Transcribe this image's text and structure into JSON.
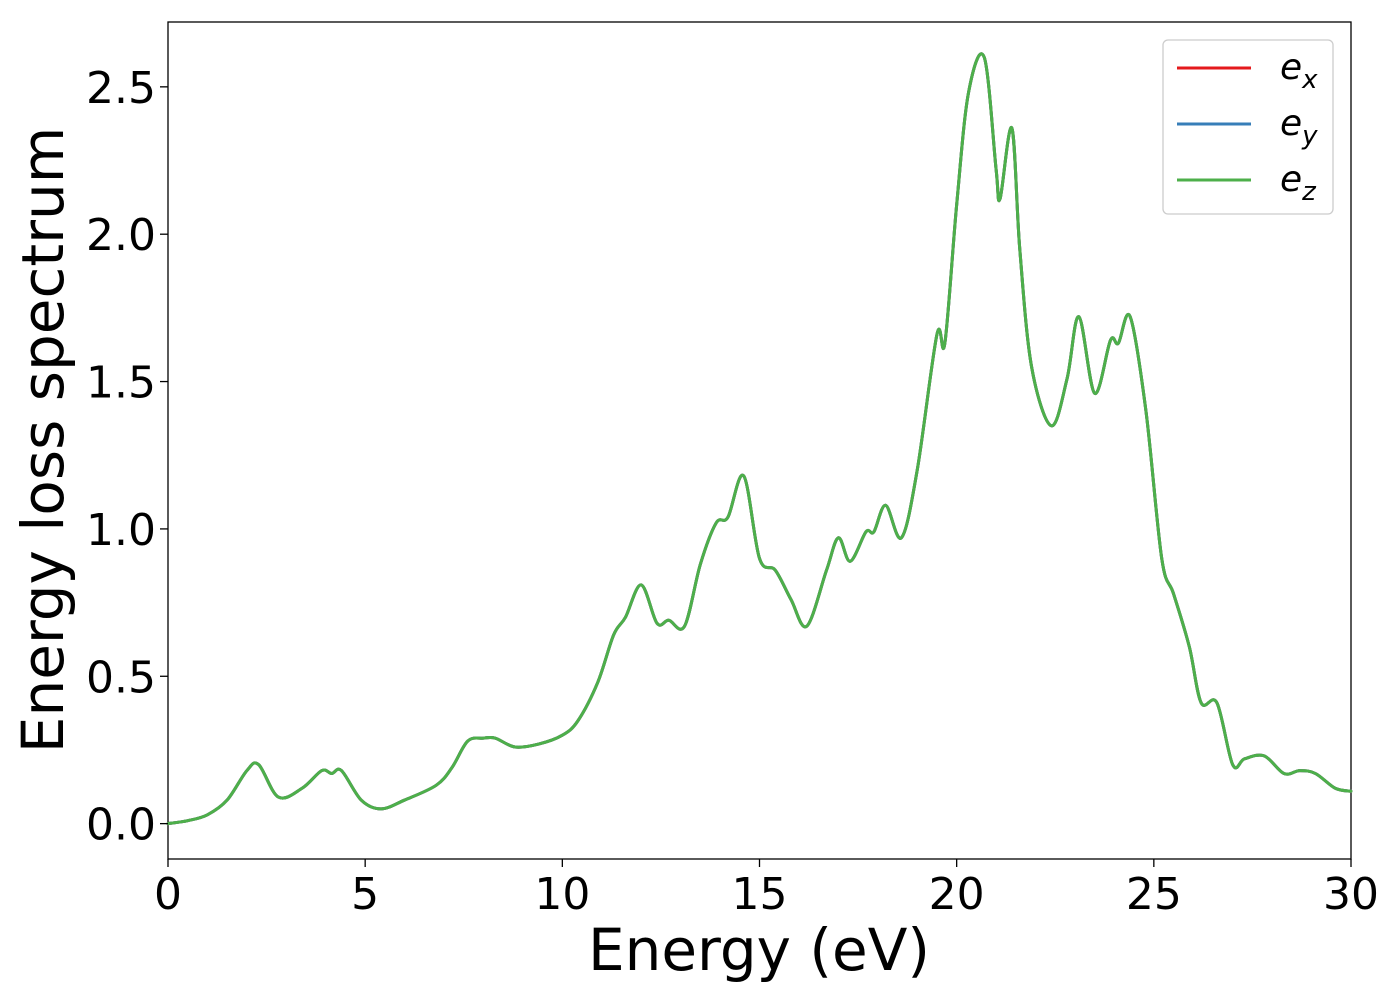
{
  "chart_data": {
    "type": "line",
    "title": "",
    "xlabel": "Energy (eV)",
    "ylabel": "Energy loss spectrum",
    "xlim": [
      0,
      30
    ],
    "ylim": [
      -0.12,
      2.72
    ],
    "xticks": [
      0,
      5,
      10,
      15,
      20,
      25,
      30
    ],
    "xtick_labels": [
      "0",
      "5",
      "10",
      "15",
      "20",
      "25",
      "30"
    ],
    "yticks": [
      0.0,
      0.5,
      1.0,
      1.5,
      2.0,
      2.5
    ],
    "ytick_labels": [
      "0.0",
      "0.5",
      "1.0",
      "1.5",
      "2.0",
      "2.5"
    ],
    "grid": false,
    "legend": {
      "position": "top-right",
      "entries": [
        {
          "base": "e",
          "sub": "x",
          "color": "#e41a1c"
        },
        {
          "base": "e",
          "sub": "y",
          "color": "#377eb8"
        },
        {
          "base": "e",
          "sub": "z",
          "color": "#4daf4a"
        }
      ]
    },
    "x": [
      0,
      0.5,
      1.0,
      1.5,
      2.0,
      2.3,
      2.8,
      3.4,
      3.9,
      4.15,
      4.4,
      4.9,
      5.4,
      6.0,
      6.8,
      7.2,
      7.6,
      8.0,
      8.3,
      8.8,
      9.4,
      10.0,
      10.4,
      10.9,
      11.3,
      11.6,
      12.0,
      12.4,
      12.7,
      13.1,
      13.5,
      13.9,
      14.2,
      14.6,
      15.0,
      15.4,
      15.8,
      16.2,
      16.7,
      17.0,
      17.3,
      17.7,
      17.9,
      18.2,
      18.6,
      19.0,
      19.5,
      19.7,
      20.0,
      20.3,
      20.7,
      21.0,
      21.1,
      21.4,
      21.6,
      21.9,
      22.4,
      22.8,
      23.1,
      23.5,
      23.9,
      24.1,
      24.4,
      24.8,
      25.2,
      25.5,
      25.9,
      26.2,
      26.6,
      27.0,
      27.3,
      27.8,
      28.3,
      28.7,
      29.1,
      29.6,
      30.0
    ],
    "series": [
      {
        "name": "e_x",
        "color": "#e41a1c",
        "values": [
          0.0,
          0.01,
          0.03,
          0.08,
          0.18,
          0.2,
          0.09,
          0.12,
          0.18,
          0.17,
          0.18,
          0.08,
          0.05,
          0.08,
          0.13,
          0.19,
          0.28,
          0.29,
          0.29,
          0.26,
          0.27,
          0.3,
          0.35,
          0.48,
          0.64,
          0.7,
          0.81,
          0.68,
          0.69,
          0.67,
          0.88,
          1.02,
          1.04,
          1.18,
          0.9,
          0.86,
          0.76,
          0.67,
          0.86,
          0.97,
          0.89,
          0.99,
          0.99,
          1.08,
          0.97,
          1.2,
          1.66,
          1.63,
          2.1,
          2.48,
          2.6,
          2.22,
          2.12,
          2.36,
          1.95,
          1.55,
          1.35,
          1.51,
          1.72,
          1.46,
          1.64,
          1.63,
          1.72,
          1.4,
          0.9,
          0.78,
          0.6,
          0.41,
          0.41,
          0.2,
          0.22,
          0.23,
          0.17,
          0.18,
          0.17,
          0.12,
          0.11
        ]
      },
      {
        "name": "e_y",
        "color": "#377eb8",
        "values": [
          0.0,
          0.01,
          0.03,
          0.08,
          0.18,
          0.2,
          0.09,
          0.12,
          0.18,
          0.17,
          0.18,
          0.08,
          0.05,
          0.08,
          0.13,
          0.19,
          0.28,
          0.29,
          0.29,
          0.26,
          0.27,
          0.3,
          0.35,
          0.48,
          0.64,
          0.7,
          0.81,
          0.68,
          0.69,
          0.67,
          0.88,
          1.02,
          1.04,
          1.18,
          0.9,
          0.86,
          0.76,
          0.67,
          0.86,
          0.97,
          0.89,
          0.99,
          0.99,
          1.08,
          0.97,
          1.2,
          1.66,
          1.63,
          2.1,
          2.48,
          2.6,
          2.22,
          2.12,
          2.36,
          1.95,
          1.55,
          1.35,
          1.51,
          1.72,
          1.46,
          1.64,
          1.63,
          1.72,
          1.4,
          0.9,
          0.78,
          0.6,
          0.41,
          0.41,
          0.2,
          0.22,
          0.23,
          0.17,
          0.18,
          0.17,
          0.12,
          0.11
        ]
      },
      {
        "name": "e_z",
        "color": "#4daf4a",
        "values": [
          0.0,
          0.01,
          0.03,
          0.08,
          0.18,
          0.2,
          0.09,
          0.12,
          0.18,
          0.17,
          0.18,
          0.08,
          0.05,
          0.08,
          0.13,
          0.19,
          0.28,
          0.29,
          0.29,
          0.26,
          0.27,
          0.3,
          0.35,
          0.48,
          0.64,
          0.7,
          0.81,
          0.68,
          0.69,
          0.67,
          0.88,
          1.02,
          1.04,
          1.18,
          0.9,
          0.86,
          0.76,
          0.67,
          0.86,
          0.97,
          0.89,
          0.99,
          0.99,
          1.08,
          0.97,
          1.2,
          1.66,
          1.63,
          2.1,
          2.48,
          2.6,
          2.22,
          2.12,
          2.36,
          1.95,
          1.55,
          1.35,
          1.51,
          1.72,
          1.46,
          1.64,
          1.63,
          1.72,
          1.4,
          0.9,
          0.78,
          0.6,
          0.41,
          0.41,
          0.2,
          0.22,
          0.23,
          0.17,
          0.18,
          0.17,
          0.12,
          0.11
        ]
      }
    ]
  }
}
